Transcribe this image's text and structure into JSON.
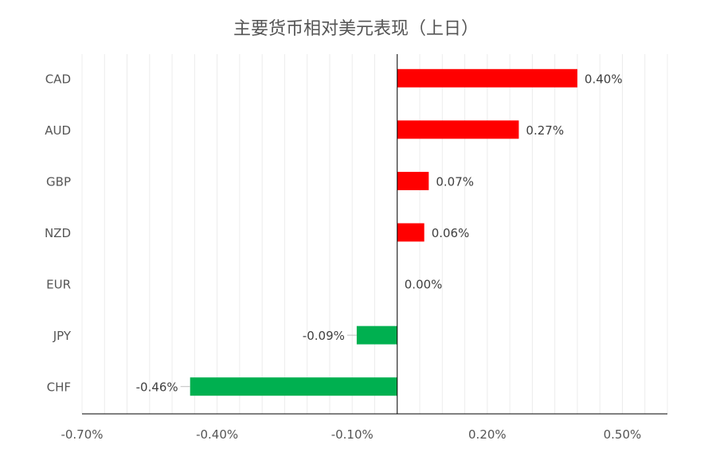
{
  "chart_data": {
    "type": "bar",
    "orientation": "horizontal",
    "title": "主要货币相对美元表现（上日）",
    "categories": [
      "CAD",
      "AUD",
      "GBP",
      "NZD",
      "EUR",
      "JPY",
      "CHF"
    ],
    "values": [
      0.4,
      0.27,
      0.07,
      0.06,
      0.0,
      -0.09,
      -0.46
    ],
    "value_labels": [
      "0.40%",
      "0.27%",
      "0.07%",
      "0.06%",
      "0.00%",
      "-0.09%",
      "-0.46%"
    ],
    "xlim": [
      -0.7,
      0.6
    ],
    "x_ticks": [
      -0.7,
      -0.4,
      -0.1,
      0.2,
      0.5
    ],
    "x_tick_labels": [
      "-0.70%",
      "-0.40%",
      "-0.10%",
      "0.20%",
      "0.50%"
    ],
    "x_minor_step": 0.05,
    "grid": "vertical",
    "legend": "none",
    "colors": {
      "positive": "#ff0000",
      "negative": "#00b050",
      "text": "#555555",
      "grid": "#ececec",
      "axis": "#000000"
    }
  }
}
